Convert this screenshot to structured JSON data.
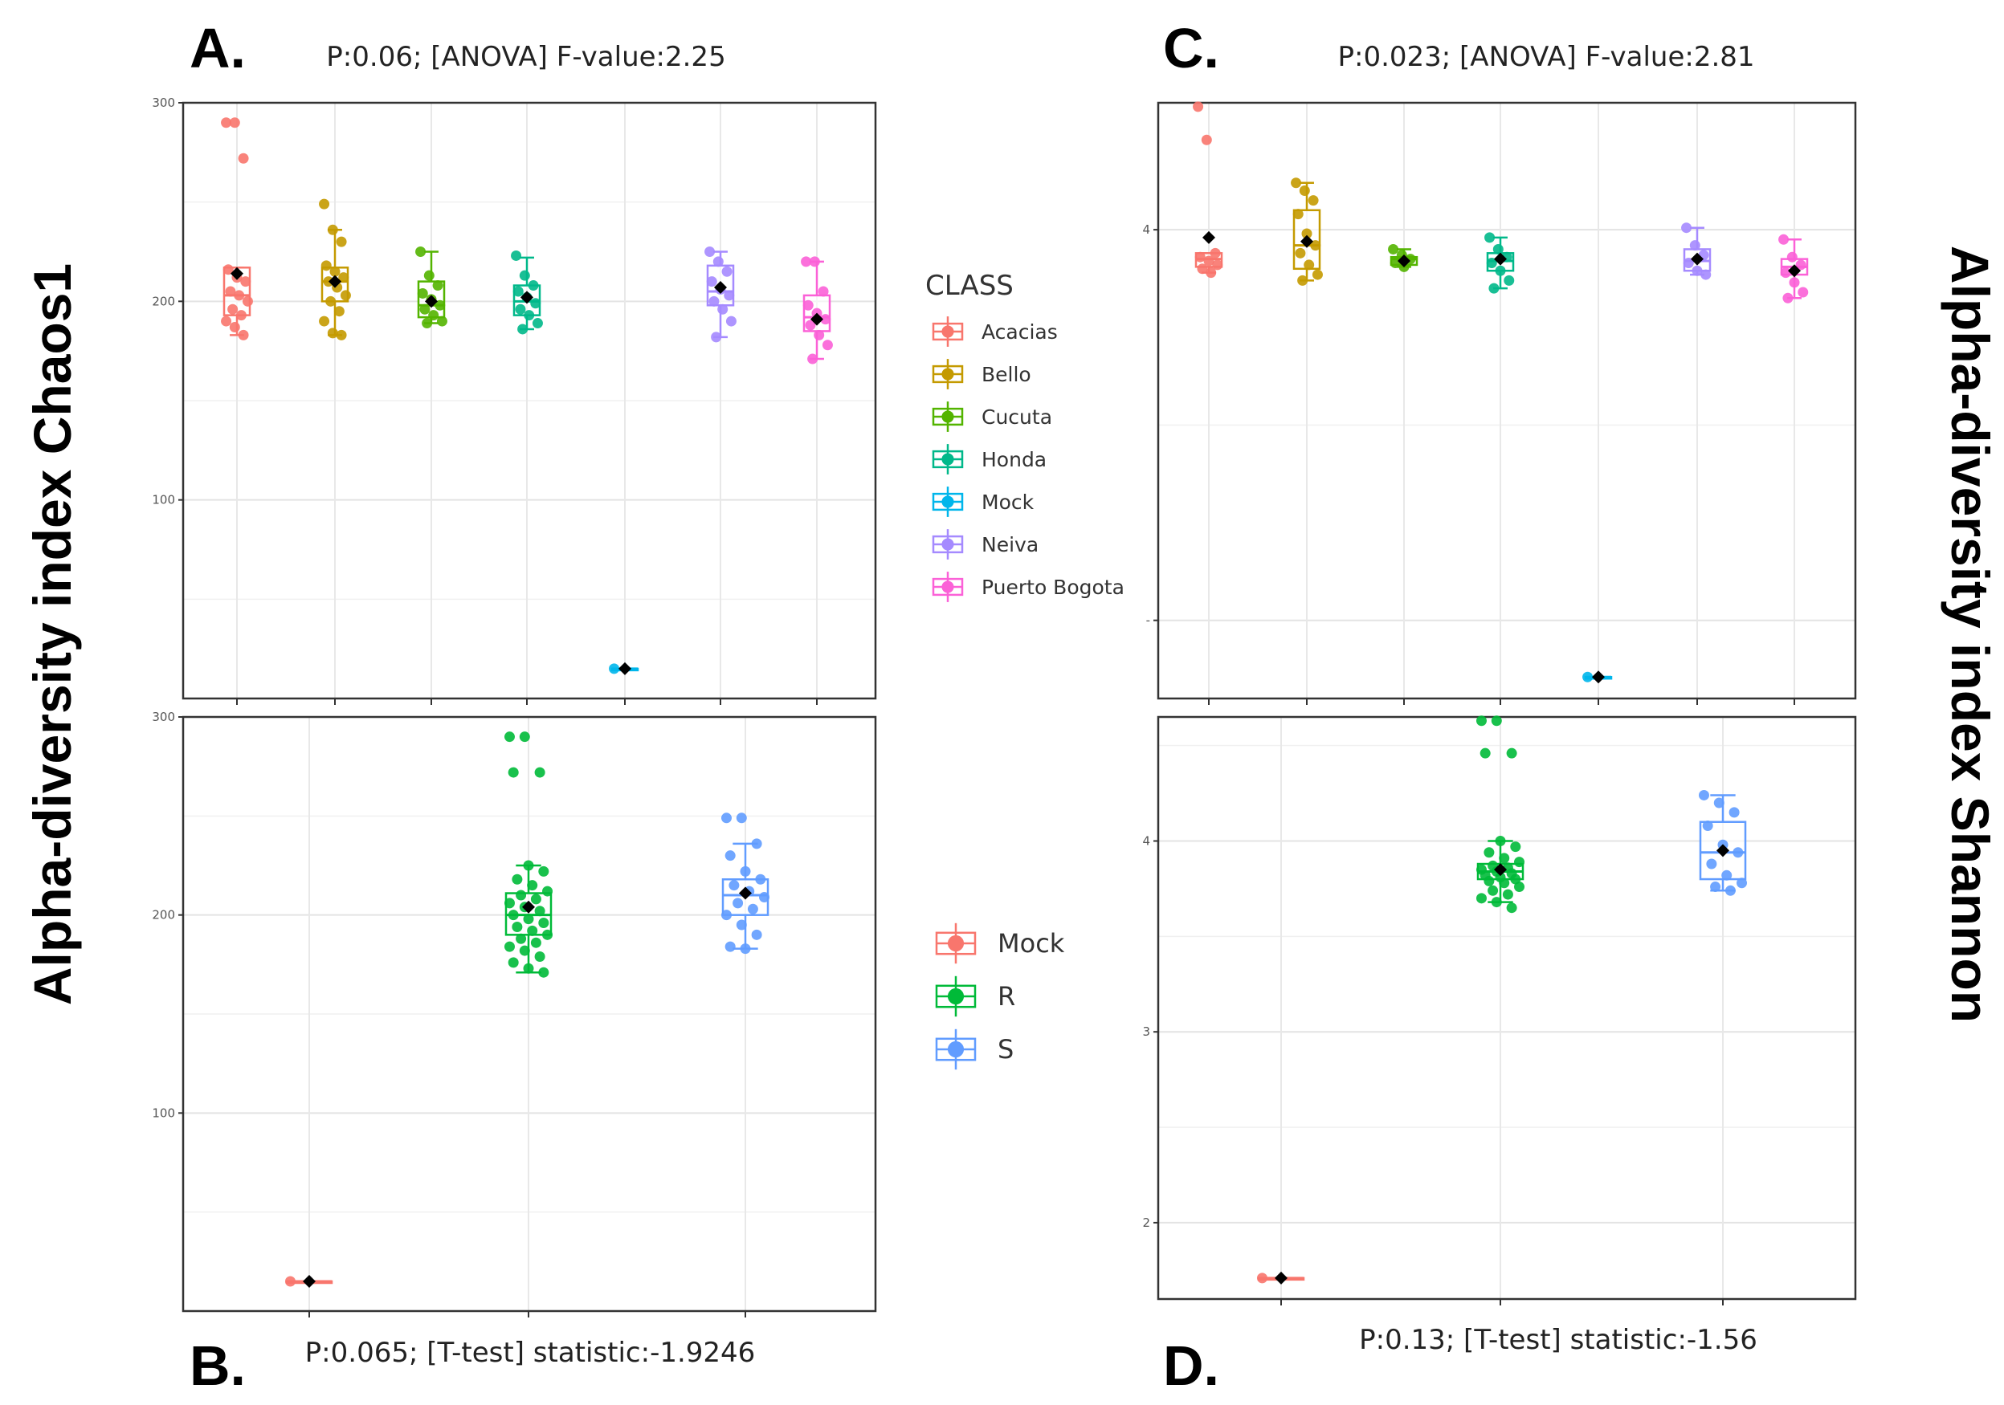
{
  "figure": {
    "y_label_left": "Alpha-diversity index Chaos1",
    "y_label_right": "Alpha-diversity index Shannon"
  },
  "legend_class": {
    "title": "CLASS",
    "items": [
      {
        "name": "Acacias",
        "color": "#F8766D"
      },
      {
        "name": "Bello",
        "color": "#C49A00"
      },
      {
        "name": "Cucuta",
        "color": "#53B400"
      },
      {
        "name": "Honda",
        "color": "#00B88A"
      },
      {
        "name": "Mock",
        "color": "#00B6EB"
      },
      {
        "name": "Neiva",
        "color": "#A58AFF"
      },
      {
        "name": "Puerto Bogota",
        "color": "#FB61D7"
      }
    ]
  },
  "legend_rs": {
    "items": [
      {
        "name": "Mock",
        "color": "#F8766D"
      },
      {
        "name": "R",
        "color": "#00BA38"
      },
      {
        "name": "S",
        "color": "#619CFF"
      }
    ]
  },
  "chart_data": [
    {
      "id": "A",
      "label": "A.",
      "type": "box",
      "title": "P:0.06; [ANOVA] F-value:2.25",
      "ylabel": "Alpha-diversity index Chaos1",
      "ylim": [
        0,
        300
      ],
      "yticks": [
        100,
        200,
        300
      ],
      "categories": [
        "Acacias",
        "Bello",
        "Cucuta",
        "Honda",
        "Mock",
        "Neiva",
        "Puerto Bogota"
      ],
      "colors": [
        "#F8766D",
        "#C49A00",
        "#53B400",
        "#00B88A",
        "#00B6EB",
        "#A58AFF",
        "#FB61D7"
      ],
      "boxes": [
        {
          "q1": 193,
          "median": 203,
          "q3": 217,
          "wlow": 183,
          "whigh": 217,
          "mean": 214,
          "points": [
            290,
            290,
            272,
            216,
            212,
            210,
            205,
            203,
            200,
            196,
            193,
            190,
            187,
            183
          ]
        },
        {
          "q1": 200,
          "median": 210,
          "q3": 217,
          "wlow": 183,
          "whigh": 236,
          "mean": 210,
          "points": [
            249,
            236,
            230,
            218,
            215,
            212,
            210,
            207,
            203,
            200,
            195,
            190,
            184,
            183
          ]
        },
        {
          "q1": 192,
          "median": 198,
          "q3": 210,
          "wlow": 189,
          "whigh": 225,
          "mean": 200,
          "points": [
            225,
            213,
            208,
            204,
            201,
            198,
            196,
            193,
            190,
            189
          ]
        },
        {
          "q1": 193,
          "median": 200,
          "q3": 208,
          "wlow": 186,
          "whigh": 222,
          "mean": 202,
          "points": [
            223,
            213,
            208,
            205,
            202,
            199,
            196,
            193,
            189,
            186
          ]
        },
        {
          "q1": 15,
          "median": 15,
          "q3": 15,
          "wlow": 15,
          "whigh": 15,
          "mean": 15,
          "points": [
            15
          ]
        },
        {
          "q1": 198,
          "median": 205,
          "q3": 218,
          "wlow": 182,
          "whigh": 225,
          "mean": 207,
          "points": [
            225,
            220,
            215,
            210,
            206,
            203,
            200,
            196,
            190,
            182
          ]
        },
        {
          "q1": 185,
          "median": 192,
          "q3": 203,
          "wlow": 171,
          "whigh": 220,
          "mean": 191,
          "points": [
            220,
            220,
            205,
            198,
            194,
            191,
            188,
            183,
            178,
            171
          ]
        }
      ]
    },
    {
      "id": "B",
      "label": "B.",
      "type": "box",
      "title": "P:0.065; [T-test] statistic:-1.9246",
      "ylabel": "Alpha-diversity index Chaos1",
      "ylim": [
        0,
        300
      ],
      "yticks": [
        100,
        200,
        300
      ],
      "categories": [
        "Mock",
        "R",
        "S"
      ],
      "colors": [
        "#F8766D",
        "#00BA38",
        "#619CFF"
      ],
      "boxes": [
        {
          "q1": 15,
          "median": 15,
          "q3": 15,
          "wlow": 15,
          "whigh": 15,
          "mean": 15,
          "points": [
            15
          ]
        },
        {
          "q1": 190,
          "median": 200,
          "q3": 211,
          "wlow": 171,
          "whigh": 225,
          "mean": 204,
          "points": [
            290,
            290,
            272,
            272,
            225,
            222,
            218,
            215,
            212,
            210,
            208,
            206,
            204,
            202,
            200,
            198,
            196,
            194,
            192,
            190,
            188,
            186,
            184,
            182,
            179,
            176,
            173,
            171
          ]
        },
        {
          "q1": 200,
          "median": 210,
          "q3": 218,
          "wlow": 183,
          "whigh": 236,
          "mean": 211,
          "points": [
            249,
            249,
            236,
            230,
            222,
            218,
            215,
            212,
            209,
            206,
            203,
            200,
            195,
            190,
            184,
            183
          ]
        }
      ]
    },
    {
      "id": "C",
      "label": "C.",
      "type": "box",
      "title": "P:0.023; [ANOVA] F-value:2.81",
      "ylabel": "Alpha-diversity index Shannon",
      "ylim": [
        1.6,
        4.65
      ],
      "yticks": [
        2,
        4
      ],
      "yticklabels": [
        "-",
        "4"
      ],
      "categories": [
        "Acacias",
        "Bello",
        "Cucuta",
        "Honda",
        "Mock",
        "Neiva",
        "Puerto Bogota"
      ],
      "colors": [
        "#F8766D",
        "#C49A00",
        "#53B400",
        "#00B88A",
        "#00B6EB",
        "#A58AFF",
        "#FB61D7"
      ],
      "boxes": [
        {
          "q1": 3.81,
          "median": 3.85,
          "q3": 3.88,
          "wlow": 3.78,
          "whigh": 3.88,
          "mean": 3.96,
          "points": [
            4.63,
            4.46,
            3.88,
            3.86,
            3.84,
            3.82,
            3.8,
            3.78
          ]
        },
        {
          "q1": 3.8,
          "median": 3.92,
          "q3": 4.1,
          "wlow": 3.74,
          "whigh": 4.24,
          "mean": 3.94,
          "points": [
            4.24,
            4.2,
            4.15,
            4.08,
            3.98,
            3.92,
            3.88,
            3.82,
            3.77,
            3.74
          ]
        },
        {
          "q1": 3.82,
          "median": 3.85,
          "q3": 3.86,
          "wlow": 3.81,
          "whigh": 3.9,
          "mean": 3.84,
          "points": [
            3.9,
            3.87,
            3.85,
            3.83,
            3.81
          ]
        },
        {
          "q1": 3.79,
          "median": 3.84,
          "q3": 3.88,
          "wlow": 3.7,
          "whigh": 3.96,
          "mean": 3.85,
          "points": [
            3.96,
            3.9,
            3.86,
            3.83,
            3.79,
            3.74,
            3.7
          ]
        },
        {
          "q1": 1.71,
          "median": 1.71,
          "q3": 1.71,
          "wlow": 1.71,
          "whigh": 1.71,
          "mean": 1.71,
          "points": [
            1.71
          ]
        },
        {
          "q1": 3.79,
          "median": 3.84,
          "q3": 3.9,
          "wlow": 3.77,
          "whigh": 4.01,
          "mean": 3.85,
          "points": [
            4.01,
            3.92,
            3.87,
            3.83,
            3.79,
            3.77
          ]
        },
        {
          "q1": 3.77,
          "median": 3.81,
          "q3": 3.85,
          "wlow": 3.65,
          "whigh": 3.95,
          "mean": 3.79,
          "points": [
            3.95,
            3.86,
            3.82,
            3.78,
            3.73,
            3.68,
            3.65
          ]
        }
      ]
    },
    {
      "id": "D",
      "label": "D.",
      "type": "box",
      "title": "P:0.13; [T-test] statistic:-1.56",
      "ylabel": "Alpha-diversity index Shannon",
      "ylim": [
        1.6,
        4.65
      ],
      "yticks": [
        2,
        3,
        4
      ],
      "categories": [
        "Mock",
        "R",
        "S"
      ],
      "colors": [
        "#F8766D",
        "#00BA38",
        "#619CFF"
      ],
      "boxes": [
        {
          "q1": 1.71,
          "median": 1.71,
          "q3": 1.71,
          "wlow": 1.71,
          "whigh": 1.71,
          "mean": 1.71,
          "points": [
            1.71
          ]
        },
        {
          "q1": 3.8,
          "median": 3.84,
          "q3": 3.88,
          "wlow": 3.68,
          "whigh": 4.0,
          "mean": 3.85,
          "points": [
            4.63,
            4.63,
            4.46,
            4.46,
            4.0,
            3.97,
            3.94,
            3.91,
            3.89,
            3.87,
            3.86,
            3.85,
            3.84,
            3.83,
            3.82,
            3.81,
            3.8,
            3.79,
            3.78,
            3.76,
            3.74,
            3.72,
            3.7,
            3.68,
            3.65
          ]
        },
        {
          "q1": 3.8,
          "median": 3.94,
          "q3": 4.1,
          "wlow": 3.74,
          "whigh": 4.24,
          "mean": 3.95,
          "points": [
            4.24,
            4.2,
            4.15,
            4.08,
            3.98,
            3.94,
            3.88,
            3.82,
            3.78,
            3.76,
            3.74
          ]
        }
      ]
    }
  ]
}
